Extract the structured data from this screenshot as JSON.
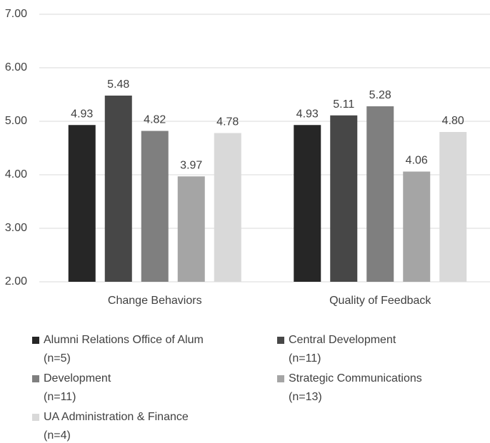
{
  "chart_data": {
    "type": "bar",
    "categories": [
      "Change Behaviors",
      "Quality of Feedback"
    ],
    "series": [
      {
        "name": "Alumni Relations Office of Alum\n(n=5)",
        "color": "#262626",
        "values": [
          4.93,
          4.93
        ],
        "value_labels": [
          "4.93",
          "4.93"
        ]
      },
      {
        "name": "Central Development\n(n=11)",
        "color": "#474747",
        "values": [
          5.48,
          5.11
        ],
        "value_labels": [
          "5.48",
          "5.11"
        ]
      },
      {
        "name": "Development\n(n=11)",
        "color": "#7f7f7f",
        "values": [
          4.82,
          5.28
        ],
        "value_labels": [
          "4.82",
          "5.28"
        ]
      },
      {
        "name": "Strategic Communications\n(n=13)",
        "color": "#a5a5a5",
        "values": [
          3.97,
          4.06
        ],
        "value_labels": [
          "3.97",
          "4.06"
        ]
      },
      {
        "name": "UA Administration & Finance\n(n=4)",
        "color": "#d9d9d9",
        "values": [
          4.78,
          4.8
        ],
        "value_labels": [
          "4.78",
          "4.80"
        ]
      }
    ],
    "ylim": [
      2,
      7
    ],
    "yticks": [
      {
        "value": 2,
        "label": "2.00"
      },
      {
        "value": 3,
        "label": "3.00"
      },
      {
        "value": 4,
        "label": "4.00"
      },
      {
        "value": 5,
        "label": "5.00"
      },
      {
        "value": 6,
        "label": "6.00"
      },
      {
        "value": 7,
        "label": "7.00"
      }
    ],
    "grid": true,
    "legend": "bottom"
  }
}
